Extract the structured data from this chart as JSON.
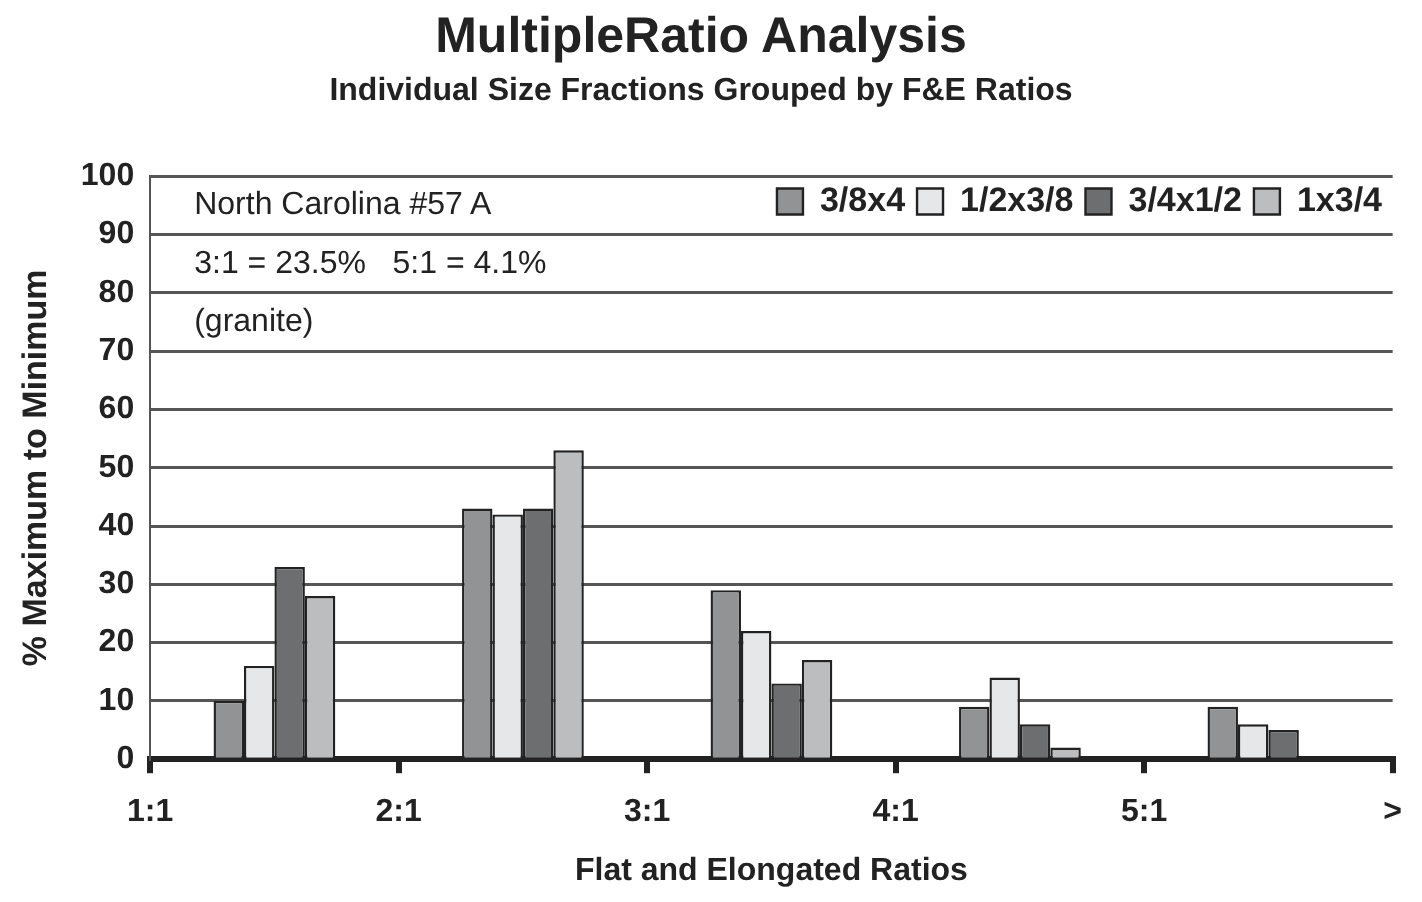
{
  "chart_data": {
    "type": "bar",
    "title": "MultipleRatio Analysis",
    "subtitle": "Individual Size Fractions Grouped by F&E Ratios",
    "xlabel": "Flat and Elongated Ratios",
    "ylabel": "% Maximum to Minimum",
    "categories": [
      "1:1",
      null,
      "2:1",
      null,
      "3:1",
      null,
      "4:1",
      null,
      "5:1",
      null,
      ">"
    ],
    "ylim": [
      0,
      100
    ],
    "yticks": [
      0,
      10,
      20,
      30,
      40,
      50,
      60,
      70,
      80,
      90,
      100
    ],
    "series": [
      {
        "name": "3/8x4",
        "color": "#919395",
        "values": [
          null,
          10,
          null,
          43,
          null,
          29,
          null,
          9,
          null,
          9,
          null
        ]
      },
      {
        "name": "1/2x3/8",
        "color": "#e6e7e8",
        "values": [
          null,
          16,
          null,
          42,
          null,
          22,
          null,
          14,
          null,
          6,
          null
        ]
      },
      {
        "name": "3/4x1/2",
        "color": "#6d6e70",
        "values": [
          null,
          33,
          null,
          43,
          null,
          13,
          null,
          6,
          null,
          5,
          null
        ]
      },
      {
        "name": "1x3/4",
        "color": "#bcbdbf",
        "values": [
          null,
          28,
          null,
          53,
          null,
          17,
          null,
          2,
          null,
          null,
          null
        ]
      }
    ],
    "annotations": [
      "North Carolina #57 A",
      "3:1 = 23.5%   5:1 = 4.1%",
      "(granite)"
    ],
    "grid": "y",
    "legend": "top right"
  }
}
